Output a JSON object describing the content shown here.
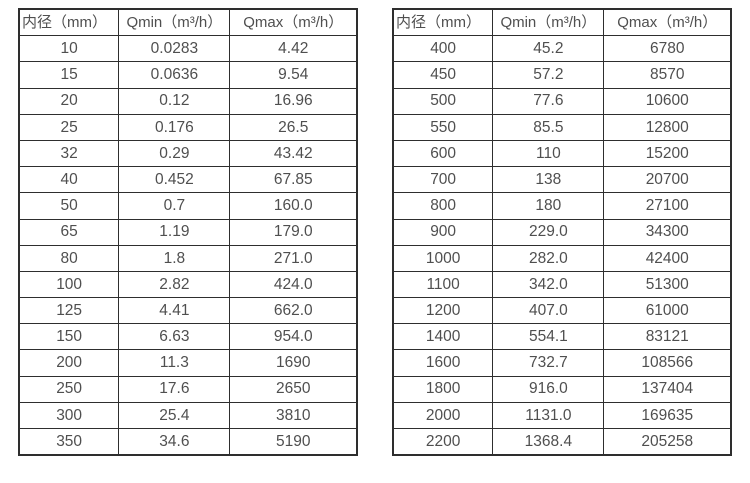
{
  "colors": {
    "background": "#ffffff",
    "border": "#2e2e2e",
    "text": "#4f4f4f"
  },
  "tables": [
    {
      "name": "flow-table-small-diameters",
      "headers": [
        "内径（mm）",
        "Qmin（m³/h）",
        "Qmax（m³/h）"
      ],
      "rows": [
        [
          "10",
          "0.0283",
          "4.42"
        ],
        [
          "15",
          "0.0636",
          "9.54"
        ],
        [
          "20",
          "0.12",
          "16.96"
        ],
        [
          "25",
          "0.176",
          "26.5"
        ],
        [
          "32",
          "0.29",
          "43.42"
        ],
        [
          "40",
          "0.452",
          "67.85"
        ],
        [
          "50",
          "0.7",
          "160.0"
        ],
        [
          "65",
          "1.19",
          "179.0"
        ],
        [
          "80",
          "1.8",
          "271.0"
        ],
        [
          "100",
          "2.82",
          "424.0"
        ],
        [
          "125",
          "4.41",
          "662.0"
        ],
        [
          "150",
          "6.63",
          "954.0"
        ],
        [
          "200",
          "11.3",
          "1690"
        ],
        [
          "250",
          "17.6",
          "2650"
        ],
        [
          "300",
          "25.4",
          "3810"
        ],
        [
          "350",
          "34.6",
          "5190"
        ]
      ]
    },
    {
      "name": "flow-table-large-diameters",
      "headers": [
        "内径（mm）",
        "Qmin（m³/h）",
        "Qmax（m³/h）"
      ],
      "rows": [
        [
          "400",
          "45.2",
          "6780"
        ],
        [
          "450",
          "57.2",
          "8570"
        ],
        [
          "500",
          "77.6",
          "10600"
        ],
        [
          "550",
          "85.5",
          "12800"
        ],
        [
          "600",
          "110",
          "15200"
        ],
        [
          "700",
          "138",
          "20700"
        ],
        [
          "800",
          "180",
          "27100"
        ],
        [
          "900",
          "229.0",
          "34300"
        ],
        [
          "1000",
          "282.0",
          "42400"
        ],
        [
          "1100",
          "342.0",
          "51300"
        ],
        [
          "1200",
          "407.0",
          "61000"
        ],
        [
          "1400",
          "554.1",
          "83121"
        ],
        [
          "1600",
          "732.7",
          "108566"
        ],
        [
          "1800",
          "916.0",
          "137404"
        ],
        [
          "2000",
          "1131.0",
          "169635"
        ],
        [
          "2200",
          "1368.4",
          "205258"
        ]
      ]
    }
  ]
}
